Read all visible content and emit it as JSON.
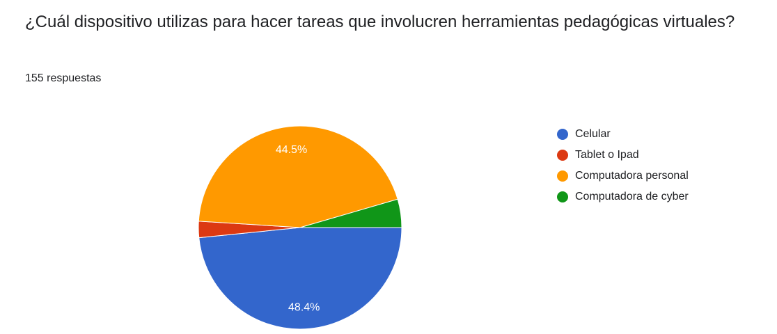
{
  "question": "¿Cuál dispositivo utilizas para hacer tareas que involucren herramientas pedagógicas virtuales?",
  "response_count": "155 respuestas",
  "chart_data": {
    "type": "pie",
    "title": "",
    "categories": [
      "Celular",
      "Tablet o Ipad",
      "Computadora personal",
      "Computadora de cyber"
    ],
    "values": [
      48.4,
      2.6,
      44.5,
      4.5
    ],
    "value_labels": [
      "48.4%",
      "",
      "44.5%",
      ""
    ],
    "colors": [
      "#3366cc",
      "#dc3912",
      "#ff9900",
      "#109618"
    ],
    "legend": "right"
  }
}
